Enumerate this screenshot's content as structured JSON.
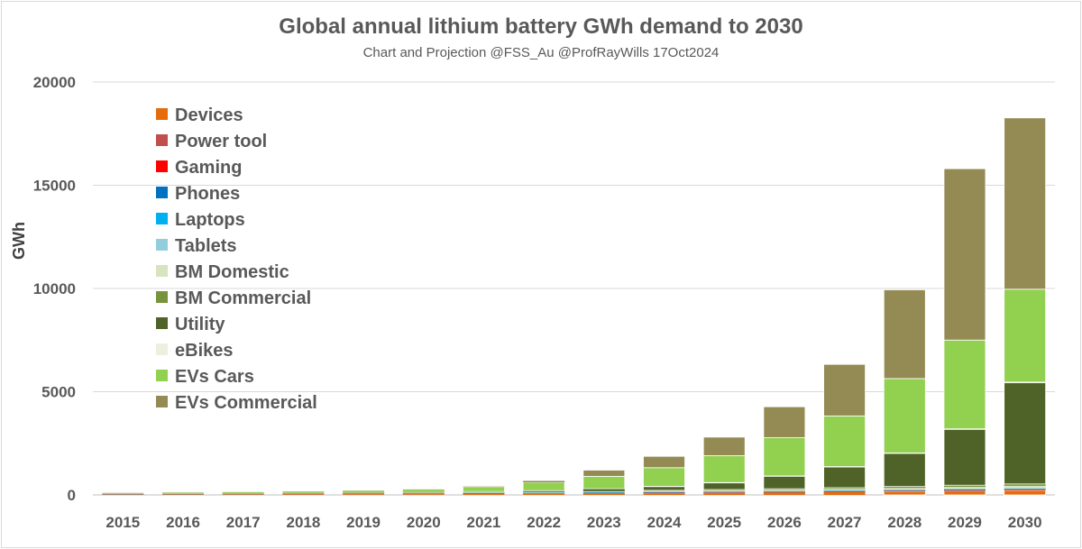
{
  "chart_data": {
    "type": "bar",
    "stacked": true,
    "title": "Global annual lithium battery GWh demand to 2030",
    "subtitle": "Chart and Projection @FSS_Au  @ProfRayWills  17Oct2024",
    "xlabel": "",
    "ylabel": "GWh",
    "ylim": [
      0,
      20000
    ],
    "yticks": [
      0,
      5000,
      10000,
      15000,
      20000
    ],
    "grid": true,
    "legend_position": "top-left",
    "categories": [
      "2015",
      "2016",
      "2017",
      "2018",
      "2019",
      "2020",
      "2021",
      "2022",
      "2023",
      "2024",
      "2025",
      "2026",
      "2027",
      "2028",
      "2029",
      "2030"
    ],
    "series": [
      {
        "name": "Devices",
        "color": "#E46C0A",
        "values": [
          20,
          22,
          25,
          28,
          32,
          38,
          45,
          55,
          65,
          80,
          95,
          110,
          130,
          160,
          190,
          220
        ]
      },
      {
        "name": "Power tool",
        "color": "#C0504D",
        "values": [
          5,
          5,
          6,
          7,
          8,
          9,
          10,
          12,
          14,
          16,
          18,
          20,
          23,
          26,
          30,
          34
        ]
      },
      {
        "name": "Gaming",
        "color": "#FF0000",
        "values": [
          5,
          5,
          5,
          6,
          6,
          7,
          8,
          9,
          10,
          11,
          12,
          13,
          14,
          15,
          16,
          17
        ]
      },
      {
        "name": "Phones",
        "color": "#0070C0",
        "values": [
          20,
          20,
          20,
          21,
          21,
          21,
          22,
          22,
          23,
          23,
          24,
          24,
          25,
          25,
          26,
          26
        ]
      },
      {
        "name": "Laptops",
        "color": "#00B0F0",
        "values": [
          10,
          10,
          11,
          11,
          11,
          12,
          12,
          12,
          13,
          13,
          13,
          14,
          14,
          14,
          15,
          15
        ]
      },
      {
        "name": "Tablets",
        "color": "#92CDDC",
        "values": [
          8,
          8,
          8,
          8,
          8,
          8,
          8,
          8,
          8,
          8,
          8,
          8,
          8,
          8,
          8,
          8
        ]
      },
      {
        "name": "BM Domestic",
        "color": "#D7E4BD",
        "values": [
          1,
          2,
          3,
          4,
          6,
          10,
          15,
          20,
          30,
          40,
          50,
          60,
          75,
          90,
          105,
          120
        ]
      },
      {
        "name": "BM Commercial",
        "color": "#77933C",
        "values": [
          1,
          2,
          3,
          4,
          6,
          8,
          12,
          16,
          22,
          30,
          40,
          50,
          60,
          70,
          80,
          90
        ]
      },
      {
        "name": "Utility",
        "color": "#4F6228",
        "values": [
          1,
          2,
          3,
          5,
          8,
          12,
          20,
          40,
          100,
          180,
          320,
          600,
          1000,
          1600,
          2700,
          4900
        ]
      },
      {
        "name": "eBikes",
        "color": "#EBF1DE",
        "values": [
          5,
          6,
          7,
          8,
          9,
          10,
          12,
          14,
          16,
          18,
          20,
          22,
          25,
          28,
          31,
          34
        ]
      },
      {
        "name": "EVs Cars",
        "color": "#92D050",
        "values": [
          20,
          30,
          40,
          60,
          80,
          120,
          220,
          400,
          600,
          900,
          1300,
          1850,
          2450,
          3600,
          4300,
          4500
        ]
      },
      {
        "name": "EVs Commercial",
        "color": "#948A54",
        "values": [
          5,
          5,
          6,
          8,
          10,
          12,
          20,
          70,
          300,
          550,
          900,
          1500,
          2500,
          4300,
          8300,
          8300
        ]
      }
    ]
  }
}
